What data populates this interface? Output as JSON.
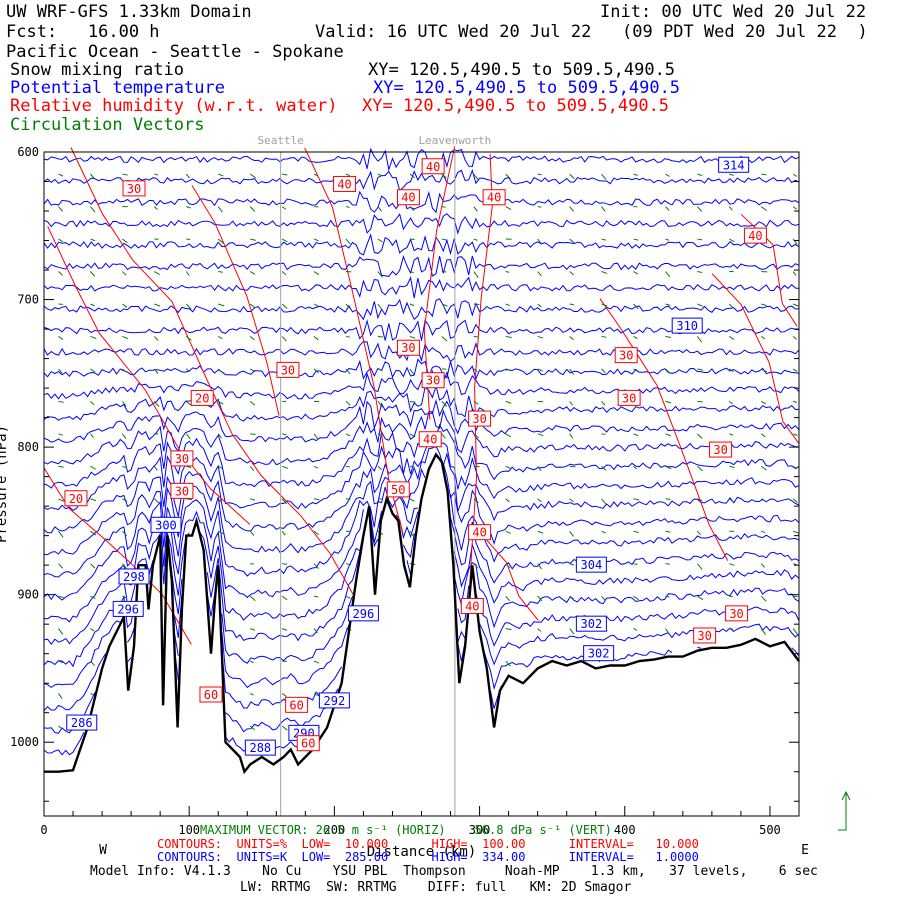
{
  "header": {
    "title_left": "UW WRF-GFS 1.33km Domain",
    "init": "Init: 00 UTC Wed 20 Jul 22",
    "fcst": "Fcst:   16.00 h",
    "valid": "Valid: 16 UTC Wed 20 Jul 22   (09 PDT Wed 20 Jul 22  )",
    "region": "Pacific Ocean - Seattle - Spokane",
    "fields": [
      {
        "name": "Snow mixing ratio",
        "xy": "XY= 120.5,490.5 to 509.5,490.5",
        "color": "#000000"
      },
      {
        "name": "Potential temperature",
        "xy": "XY= 120.5,490.5 to 509.5,490.5",
        "color": "#0000ff"
      },
      {
        "name": "Relative humidity (w.r.t. water)",
        "xy": "XY= 120.5,490.5 to 509.5,490.5",
        "color": "#ff0000"
      },
      {
        "name": "Circulation Vectors",
        "xy": "",
        "color": "#008000"
      }
    ]
  },
  "chart_data": {
    "type": "cross-section",
    "xlabel": "Distance (km)",
    "ylabel": "Pressure (hPa)",
    "xlim": [
      0,
      520
    ],
    "ylim": [
      1050,
      600
    ],
    "x_ticks": [
      "0",
      "100",
      "200",
      "300",
      "400",
      "500"
    ],
    "y_ticks": [
      "600",
      "700",
      "800",
      "900",
      "1000"
    ],
    "direction_left": "W",
    "direction_right": "E",
    "city_markers": [
      {
        "label": "Seattle",
        "x": 163
      },
      {
        "label": "Leavenworth",
        "x": 283
      }
    ],
    "terrain_surface": [
      [
        0,
        1020
      ],
      [
        10,
        1020
      ],
      [
        20,
        1019
      ],
      [
        30,
        990
      ],
      [
        40,
        950
      ],
      [
        45,
        935
      ],
      [
        50,
        925
      ],
      [
        55,
        915
      ],
      [
        58,
        965
      ],
      [
        62,
        935
      ],
      [
        65,
        880
      ],
      [
        70,
        880
      ],
      [
        72,
        910
      ],
      [
        75,
        880
      ],
      [
        80,
        860
      ],
      [
        82,
        975
      ],
      [
        85,
        860
      ],
      [
        88,
        890
      ],
      [
        92,
        990
      ],
      [
        95,
        910
      ],
      [
        98,
        860
      ],
      [
        102,
        860
      ],
      [
        105,
        850
      ],
      [
        110,
        870
      ],
      [
        115,
        940
      ],
      [
        118,
        900
      ],
      [
        120,
        880
      ],
      [
        125,
        1000
      ],
      [
        130,
        1005
      ],
      [
        135,
        1010
      ],
      [
        138,
        1020
      ],
      [
        142,
        1015
      ],
      [
        150,
        1010
      ],
      [
        158,
        1015
      ],
      [
        165,
        1010
      ],
      [
        170,
        1005
      ],
      [
        175,
        1015
      ],
      [
        185,
        1005
      ],
      [
        195,
        990
      ],
      [
        205,
        960
      ],
      [
        210,
        925
      ],
      [
        215,
        890
      ],
      [
        220,
        860
      ],
      [
        224,
        840
      ],
      [
        228,
        900
      ],
      [
        232,
        850
      ],
      [
        236,
        835
      ],
      [
        240,
        845
      ],
      [
        244,
        850
      ],
      [
        248,
        880
      ],
      [
        252,
        895
      ],
      [
        256,
        860
      ],
      [
        260,
        835
      ],
      [
        265,
        815
      ],
      [
        270,
        805
      ],
      [
        274,
        810
      ],
      [
        278,
        830
      ],
      [
        282,
        880
      ],
      [
        286,
        960
      ],
      [
        290,
        935
      ],
      [
        295,
        880
      ],
      [
        300,
        925
      ],
      [
        305,
        950
      ],
      [
        310,
        990
      ],
      [
        314,
        965
      ],
      [
        320,
        955
      ],
      [
        330,
        960
      ],
      [
        340,
        950
      ],
      [
        350,
        945
      ],
      [
        360,
        948
      ],
      [
        370,
        945
      ],
      [
        380,
        950
      ],
      [
        390,
        948
      ],
      [
        400,
        948
      ],
      [
        410,
        945
      ],
      [
        420,
        944
      ],
      [
        430,
        942
      ],
      [
        440,
        942
      ],
      [
        450,
        938
      ],
      [
        460,
        936
      ],
      [
        470,
        936
      ],
      [
        480,
        934
      ],
      [
        490,
        930
      ],
      [
        500,
        935
      ],
      [
        510,
        932
      ],
      [
        520,
        945
      ]
    ],
    "theta_labels": [
      {
        "value": "314",
        "x": 475,
        "p": 609
      },
      {
        "value": "310",
        "x": 443,
        "p": 718
      },
      {
        "value": "304",
        "x": 377,
        "p": 880
      },
      {
        "value": "302",
        "x": 377,
        "p": 920
      },
      {
        "value": "302",
        "x": 382,
        "p": 940
      },
      {
        "value": "300",
        "x": 84,
        "p": 853
      },
      {
        "value": "298",
        "x": 62,
        "p": 888
      },
      {
        "value": "296",
        "x": 58,
        "p": 910
      },
      {
        "value": "296",
        "x": 220,
        "p": 913
      },
      {
        "value": "292",
        "x": 200,
        "p": 972
      },
      {
        "value": "290",
        "x": 179,
        "p": 994
      },
      {
        "value": "288",
        "x": 149,
        "p": 1004
      },
      {
        "value": "286",
        "x": 26,
        "p": 987
      }
    ],
    "rh_labels": [
      {
        "value": "30",
        "x": 62,
        "p": 625
      },
      {
        "value": "40",
        "x": 207,
        "p": 622
      },
      {
        "value": "40",
        "x": 268,
        "p": 610
      },
      {
        "value": "40",
        "x": 251,
        "p": 631
      },
      {
        "value": "40",
        "x": 310,
        "p": 631
      },
      {
        "value": "40",
        "x": 490,
        "p": 657
      },
      {
        "value": "30",
        "x": 251,
        "p": 733
      },
      {
        "value": "30",
        "x": 268,
        "p": 755
      },
      {
        "value": "30",
        "x": 401,
        "p": 738
      },
      {
        "value": "30",
        "x": 403,
        "p": 767
      },
      {
        "value": "30",
        "x": 168,
        "p": 748
      },
      {
        "value": "20",
        "x": 109,
        "p": 767
      },
      {
        "value": "30",
        "x": 300,
        "p": 781
      },
      {
        "value": "40",
        "x": 266,
        "p": 795
      },
      {
        "value": "30",
        "x": 466,
        "p": 802
      },
      {
        "value": "30",
        "x": 95,
        "p": 808
      },
      {
        "value": "30",
        "x": 95,
        "p": 830
      },
      {
        "value": "20",
        "x": 22,
        "p": 835
      },
      {
        "value": "50",
        "x": 244,
        "p": 829
      },
      {
        "value": "40",
        "x": 300,
        "p": 858
      },
      {
        "value": "40",
        "x": 295,
        "p": 908
      },
      {
        "value": "30",
        "x": 477,
        "p": 913
      },
      {
        "value": "30",
        "x": 455,
        "p": 928
      },
      {
        "value": "60",
        "x": 115,
        "p": 968
      },
      {
        "value": "60",
        "x": 174,
        "p": 975
      },
      {
        "value": "60",
        "x": 182,
        "p": 1001
      }
    ]
  },
  "footer": {
    "max_vector": "MAXIMUM VECTOR: 26.5 m s⁻¹ (HORIZ)    56.8 dPa s⁻¹ (VERT)",
    "contours_rh": "CONTOURS:  UNITS=%  LOW=  10.000      HIGH=  100.00      INTERVAL=   10.000",
    "contours_theta": "CONTOURS:  UNITS=K  LOW=  285.00      HIGH=  334.00      INTERVAL=   1.0000",
    "model_info": "Model Info: V4.1.3    No Cu    YSU PBL  Thompson     Noah-MP    1.3 km,   37 levels,    6 sec",
    "model_info2": "LW: RRTMG  SW: RRTMG    DIFF: full   KM: 2D Smagor"
  }
}
